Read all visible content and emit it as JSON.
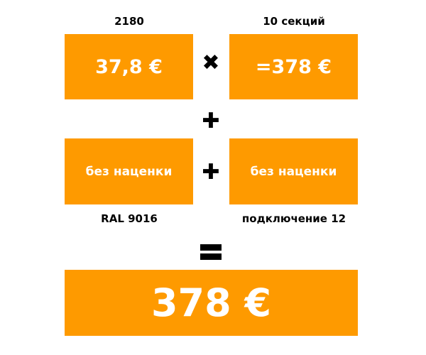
{
  "labels": {
    "top_left": "2180",
    "top_right": "10 секций",
    "mid_left": "RAL 9016",
    "mid_right": "подключение 12"
  },
  "boxes": {
    "price": "37,8 €",
    "subtotal": "=378 €",
    "color_surcharge": "без наценки",
    "connection_surcharge": "без наценки",
    "total": "378 €"
  },
  "operators": {
    "multiply": "✖",
    "plus1": "✚",
    "plus2": "✚",
    "equals": "="
  },
  "colors": {
    "accent": "#fe9a00",
    "text_on_accent": "#ffffff"
  }
}
